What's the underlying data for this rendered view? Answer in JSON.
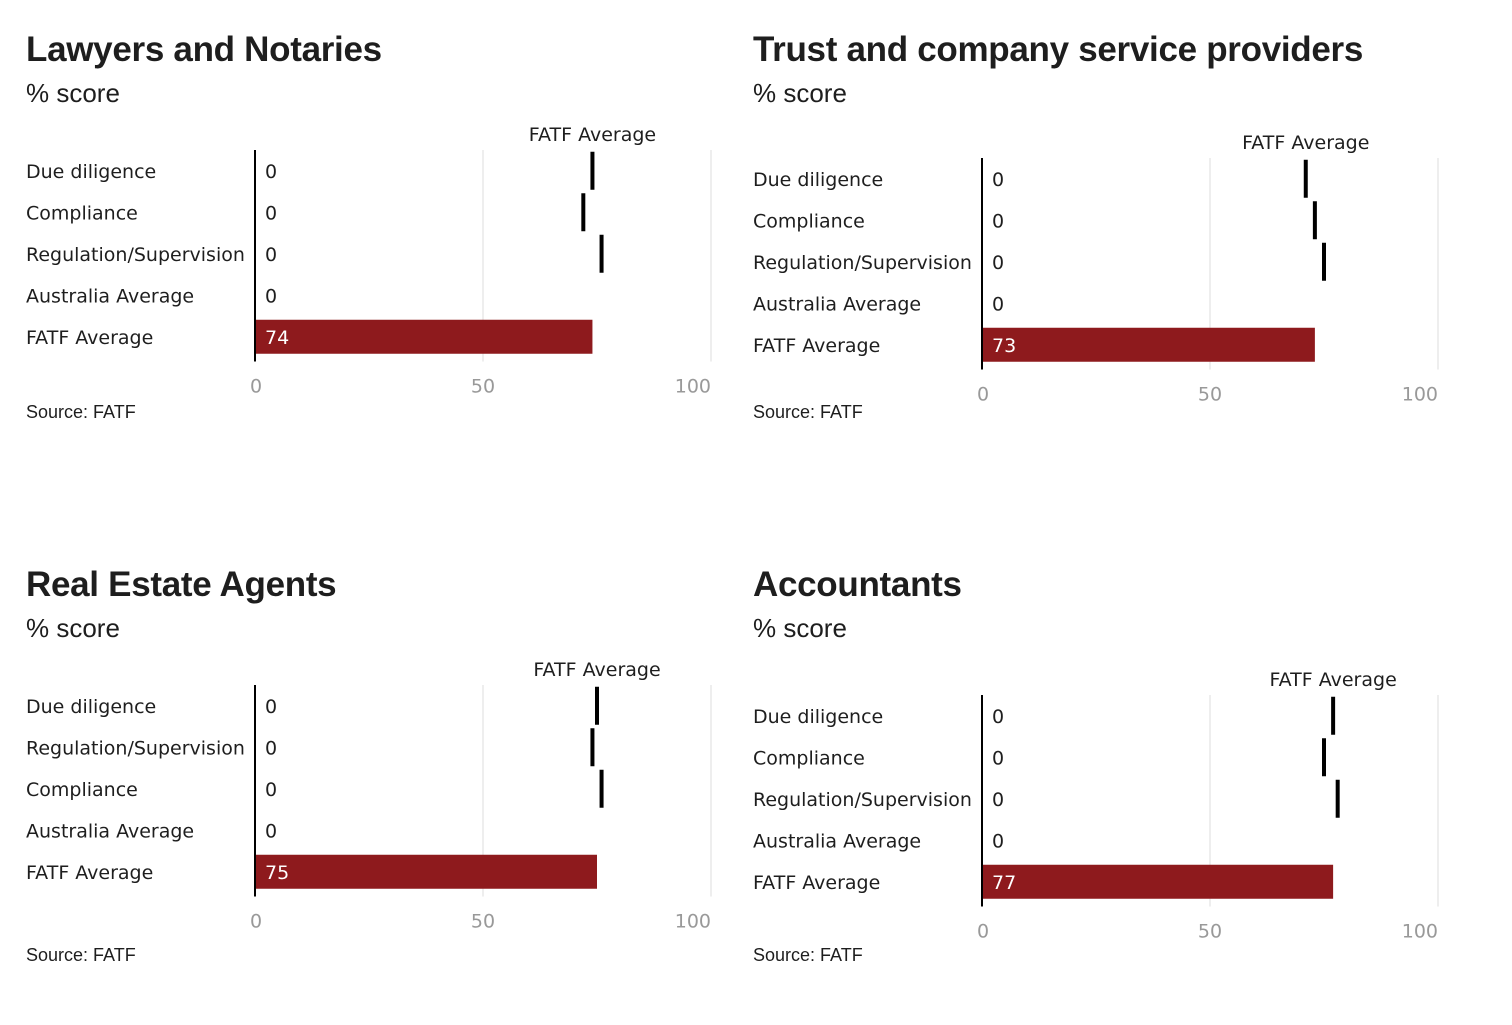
{
  "colors": {
    "bar": "#8e1a1d",
    "text": "#1e1e1e",
    "grid": "#dcdcdc",
    "tick": "#999999",
    "marker": "#000000"
  },
  "chart_data": [
    {
      "type": "bar",
      "title": "Lawyers and Notaries",
      "subtitle": "% score",
      "source": "Source: FATF",
      "categories": [
        "Due diligence",
        "Compliance",
        "Regulation/Supervision",
        "Australia Average",
        "FATF Average"
      ],
      "values": [
        0,
        0,
        0,
        0,
        74
      ],
      "reference_line": {
        "name": "FATF Average",
        "values": [
          74,
          72,
          76
        ]
      },
      "xlim": [
        0,
        100
      ],
      "xticks": [
        0,
        50,
        100
      ]
    },
    {
      "type": "bar",
      "title": "Trust and company service providers",
      "subtitle": "% score",
      "source": "Source: FATF",
      "categories": [
        "Due diligence",
        "Compliance",
        "Regulation/Supervision",
        "Australia Average",
        "FATF Average"
      ],
      "values": [
        0,
        0,
        0,
        0,
        73
      ],
      "reference_line": {
        "name": "FATF Average",
        "values": [
          71,
          73,
          75
        ]
      },
      "xlim": [
        0,
        100
      ],
      "xticks": [
        0,
        50,
        100
      ]
    },
    {
      "type": "bar",
      "title": "Real Estate Agents",
      "subtitle": "% score",
      "source": "Source: FATF",
      "categories": [
        "Due diligence",
        "Regulation/Supervision",
        "Compliance",
        "Australia Average",
        "FATF Average"
      ],
      "values": [
        0,
        0,
        0,
        0,
        75
      ],
      "reference_line": {
        "name": "FATF Average",
        "values": [
          75,
          74,
          76
        ]
      },
      "xlim": [
        0,
        100
      ],
      "xticks": [
        0,
        50,
        100
      ]
    },
    {
      "type": "bar",
      "title": "Accountants",
      "subtitle": "% score",
      "source": "Source: FATF",
      "categories": [
        "Due diligence",
        "Compliance",
        "Regulation/Supervision",
        "Australia Average",
        "FATF Average"
      ],
      "values": [
        0,
        0,
        0,
        0,
        77
      ],
      "reference_line": {
        "name": "FATF Average",
        "values": [
          77,
          75,
          78
        ]
      },
      "xlim": [
        0,
        100
      ],
      "xticks": [
        0,
        50,
        100
      ]
    }
  ]
}
